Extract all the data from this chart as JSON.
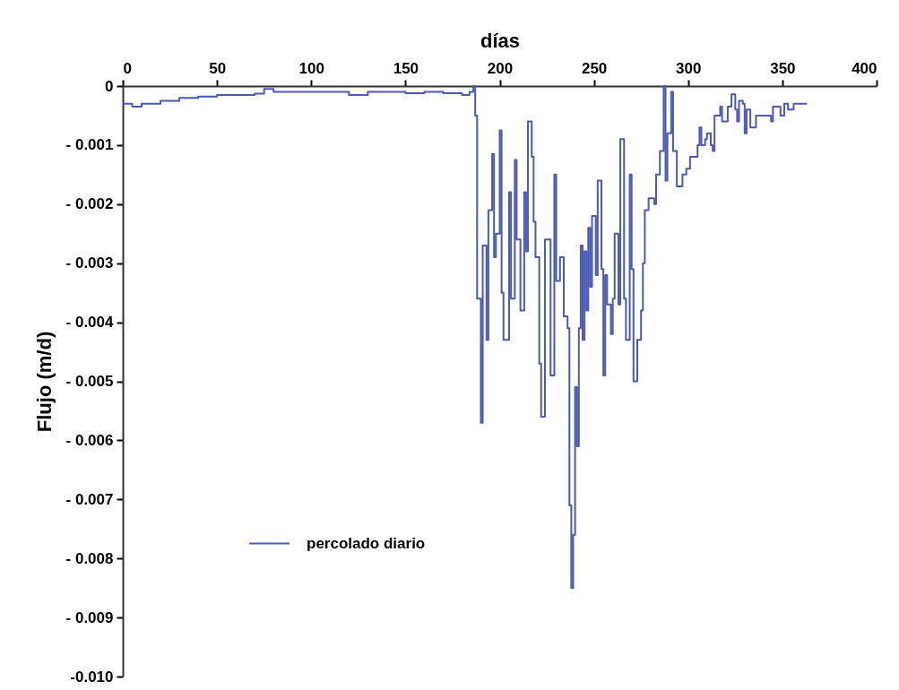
{
  "chart_data": {
    "type": "step",
    "xlabel": "días",
    "ylabel": "Flujo (m/d)",
    "xlim": [
      0,
      400
    ],
    "xticks": [
      0,
      50,
      100,
      150,
      200,
      250,
      300,
      350,
      400
    ],
    "ylim": [
      -0.01,
      0
    ],
    "yticks": [
      0,
      {
        "value": -0.001,
        "label": "- 0.001"
      },
      {
        "value": -0.002,
        "label": "- 0.002"
      },
      {
        "value": -0.003,
        "label": "- 0.003"
      },
      {
        "value": -0.004,
        "label": "- 0.004"
      },
      {
        "value": -0.005,
        "label": "- 0.005"
      },
      {
        "value": -0.006,
        "label": "- 0.006"
      },
      {
        "value": -0.007,
        "label": "- 0.007"
      },
      {
        "value": -0.008,
        "label": "- 0.008"
      },
      {
        "value": -0.009,
        "label": "- 0.009"
      },
      {
        "value": -0.01,
        "label": "-0.010"
      }
    ],
    "grid": false,
    "legend": "bottom left",
    "marker": "none",
    "line_style": "solid",
    "series": [
      {
        "name": "percolado diario",
        "color": "#4a5ab5",
        "x": [
          0,
          5,
          10,
          20,
          30,
          40,
          50,
          60,
          70,
          75,
          80,
          90,
          100,
          110,
          120,
          130,
          140,
          150,
          160,
          170,
          180,
          184,
          186,
          187,
          188,
          190,
          191,
          193,
          194,
          196,
          197,
          198,
          200,
          201,
          202,
          205,
          206,
          208,
          209,
          211,
          213,
          214,
          215,
          217,
          218,
          219,
          221,
          222,
          224,
          227,
          229,
          230,
          232,
          234,
          236,
          237,
          238,
          239,
          240,
          241,
          242,
          243,
          244,
          245,
          246,
          247,
          248,
          249,
          251,
          252,
          254,
          255,
          256,
          257,
          259,
          260,
          261,
          263,
          264,
          266,
          267,
          269,
          270,
          271,
          273,
          275,
          276,
          277,
          279,
          282,
          283,
          285,
          287,
          288,
          289,
          291,
          292,
          294,
          297,
          299,
          301,
          304,
          305,
          306,
          307,
          309,
          310,
          312,
          313,
          314,
          317,
          318,
          321,
          323,
          325,
          326,
          327,
          329,
          330,
          331,
          333,
          334,
          336,
          339,
          344,
          345,
          347,
          349,
          351,
          353,
          356,
          358,
          363
        ],
        "values": [
          -0.0003,
          -0.00035,
          -0.0003,
          -0.00025,
          -0.0002,
          -0.00018,
          -0.00015,
          -0.00015,
          -0.00013,
          -5e-05,
          -0.0001,
          -0.0001,
          -0.0001,
          -0.0001,
          -0.00015,
          -0.0001,
          -0.0001,
          -0.00012,
          -0.0001,
          -0.00012,
          -0.00015,
          -0.0001,
          0,
          -0.0005,
          -0.0036,
          -0.0057,
          -0.0027,
          -0.0043,
          -0.0021,
          -0.00115,
          -0.0029,
          -0.0025,
          -0.00075,
          -0.0035,
          -0.0043,
          -0.0018,
          -0.0036,
          -0.00125,
          -0.0026,
          -0.0038,
          -0.0018,
          -0.0028,
          -0.0006,
          -0.0012,
          -0.0023,
          -0.0029,
          -0.0047,
          -0.0056,
          -0.0026,
          -0.0049,
          -0.0015,
          -0.0033,
          -0.0029,
          -0.0039,
          -0.0041,
          -0.0071,
          -0.0085,
          -0.0076,
          -0.0051,
          -0.0061,
          -0.0041,
          -0.0027,
          -0.0043,
          -0.0028,
          -0.0038,
          -0.0024,
          -0.0034,
          -0.0022,
          -0.0032,
          -0.0016,
          -0.0031,
          -0.0049,
          -0.0032,
          -0.0037,
          -0.0042,
          -0.0036,
          -0.0025,
          -0.0037,
          -0.0009,
          -0.0036,
          -0.0043,
          -0.0015,
          -0.0031,
          -0.005,
          -0.0043,
          -0.0038,
          -0.003,
          -0.0021,
          -0.0019,
          -0.002,
          -0.0015,
          -0.0011,
          0,
          -0.0016,
          -0.0008,
          -0.0001,
          -0.0011,
          -0.0017,
          -0.0015,
          -0.0014,
          -0.0012,
          -0.0012,
          -0.001,
          -0.0007,
          -0.001,
          -0.0009,
          -0.0008,
          -0.001,
          -0.0011,
          -0.0005,
          -0.00035,
          -0.0006,
          -0.00035,
          -0.00014,
          -0.0004,
          -0.0006,
          -0.00025,
          -0.0003,
          -0.0008,
          -0.0004,
          -0.0007,
          -0.0007,
          -0.0005,
          -0.0005,
          -0.0006,
          -0.00035,
          -0.00035,
          -0.0005,
          -0.0003,
          -0.0004,
          -0.0003,
          -0.0003,
          -0.0003
        ]
      }
    ]
  }
}
